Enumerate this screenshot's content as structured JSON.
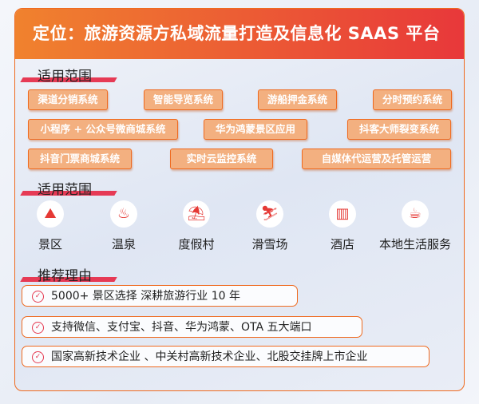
{
  "title": "定位：旅游资源方私域流量打造及信息化 SAAS 平台",
  "section1": {
    "title": "适用范围",
    "tags": [
      "渠道分销系统",
      "智能导览系统",
      "游船押金系统",
      "分时预约系统",
      "小程序 + 公众号微商城系统",
      "华为鸿蒙景区应用",
      "抖客大师裂变系统",
      "抖音门票商城系统",
      "实时云监控系统",
      "自媒体代运营及托管运营"
    ]
  },
  "section2": {
    "title": "适用范围",
    "items": [
      {
        "label": "景区",
        "icon": "mountain-icon"
      },
      {
        "label": "温泉",
        "icon": "hot-spring-icon"
      },
      {
        "label": "度假村",
        "icon": "beach-umbrella-icon"
      },
      {
        "label": "滑雪场",
        "icon": "skier-icon"
      },
      {
        "label": "酒店",
        "icon": "hotel-building-icon"
      },
      {
        "label": "本地生活服务",
        "icon": "coffee-cup-icon"
      }
    ]
  },
  "section3": {
    "title": "推荐理由",
    "reasons": [
      "5000+ 景区选择  深耕旅游行业 10 年",
      "支持微信、支付宝、抖音、华为鸿蒙、OTA 五大端口",
      "国家高新技术企业 、中关村高新技术企业、北股交挂牌上市企业"
    ]
  },
  "colors": {
    "accent": "#ef6a1f",
    "red": "#e8383a",
    "tag_bg": "#f3b080"
  }
}
